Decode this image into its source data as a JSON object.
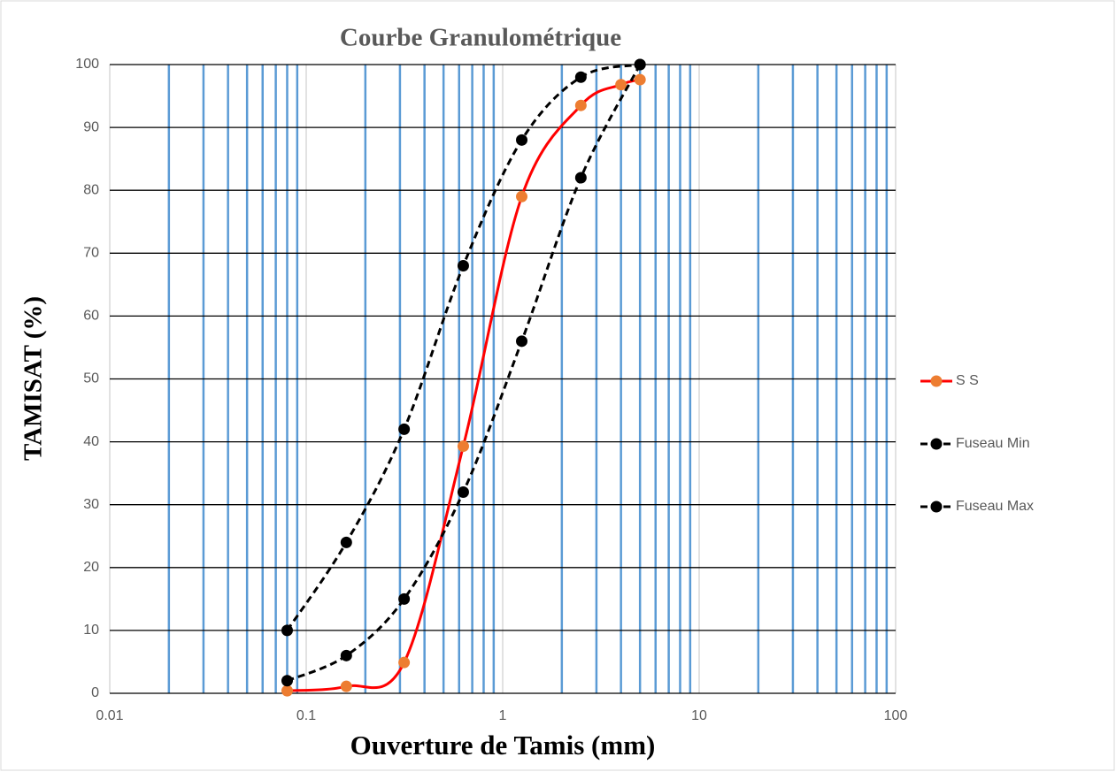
{
  "chart_data": {
    "type": "line",
    "title": "Courbe Granulométrique",
    "x_label": "Ouverture de Tamis (mm)",
    "y_label": "TAMISAT (%)",
    "x_log": true,
    "minor_grid": true,
    "grid": true,
    "legend": "right",
    "xlim": [
      0.01,
      100
    ],
    "xticks": [
      0.01,
      0.1,
      1,
      10,
      100
    ],
    "ylim": [
      0,
      100
    ],
    "yticks": [
      0,
      10,
      20,
      30,
      40,
      50,
      60,
      70,
      80,
      90,
      100
    ],
    "series": [
      {
        "name": "S S",
        "color": "#ff0000",
        "marker_color": "#ed7d31",
        "dashed": false,
        "x": [
          0.08,
          0.16,
          0.315,
          0.63,
          1.25,
          2.5,
          4,
          5
        ],
        "values": [
          0.4,
          1.1,
          4.9,
          39.3,
          79,
          93.5,
          96.8,
          97.6
        ]
      },
      {
        "name": "Fuseau Min",
        "color": "#000000",
        "marker_color": "#000000",
        "dashed": true,
        "x": [
          0.08,
          0.16,
          0.315,
          0.63,
          1.25,
          2.5,
          5
        ],
        "values": [
          2,
          6,
          15,
          32,
          56,
          82,
          100
        ]
      },
      {
        "name": "Fuseau Max",
        "color": "#000000",
        "marker_color": "#000000",
        "dashed": true,
        "x": [
          0.08,
          0.16,
          0.315,
          0.63,
          1.25,
          2.5,
          5
        ],
        "values": [
          10,
          24,
          42,
          68,
          88,
          98,
          100
        ]
      }
    ]
  }
}
